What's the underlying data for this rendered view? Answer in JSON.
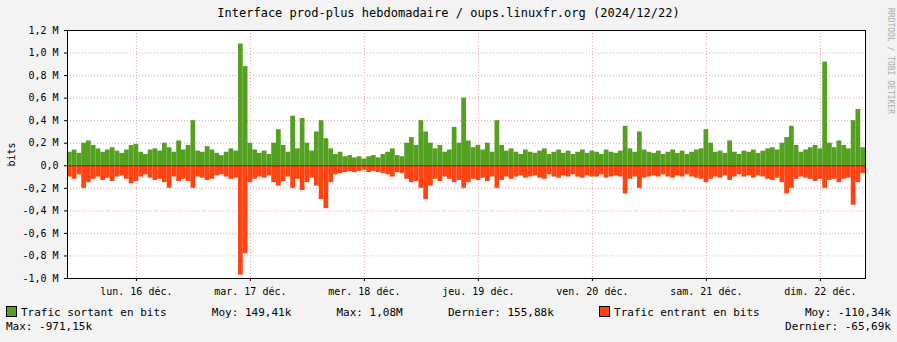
{
  "chart_data": {
    "type": "bar",
    "title": "Interface prod-plus hebdomadaire / oups.linuxfr.org (2024/12/22)",
    "y_label": "bits",
    "annotations": [
      "RRDTOOL / TOBI OETIKER"
    ],
    "categories": [
      null,
      null,
      null,
      null,
      null,
      null,
      null,
      null,
      null,
      null,
      null,
      null,
      null,
      null,
      "lun. 16 déc.",
      null,
      null,
      null,
      null,
      null,
      null,
      null,
      null,
      null,
      null,
      null,
      null,
      null,
      null,
      null,
      null,
      null,
      null,
      null,
      null,
      null,
      null,
      null,
      "mar. 17 déc.",
      null,
      null,
      null,
      null,
      null,
      null,
      null,
      null,
      null,
      null,
      null,
      null,
      null,
      null,
      null,
      null,
      null,
      null,
      null,
      null,
      null,
      null,
      null,
      "mer. 18 déc.",
      null,
      null,
      null,
      null,
      null,
      null,
      null,
      null,
      null,
      null,
      null,
      null,
      null,
      null,
      null,
      null,
      null,
      null,
      null,
      null,
      null,
      null,
      null,
      "jeu. 19 déc.",
      null,
      null,
      null,
      null,
      null,
      null,
      null,
      null,
      null,
      null,
      null,
      null,
      null,
      null,
      null,
      null,
      null,
      null,
      null,
      null,
      null,
      null,
      null,
      "ven. 20 déc.",
      null,
      null,
      null,
      null,
      null,
      null,
      null,
      null,
      null,
      null,
      null,
      null,
      null,
      null,
      null,
      null,
      null,
      null,
      null,
      null,
      null,
      null,
      null,
      "sam. 21 déc.",
      null,
      null,
      null,
      null,
      null,
      null,
      null,
      null,
      null,
      null,
      null,
      null,
      null,
      null,
      null,
      null,
      null,
      null,
      null,
      null,
      null,
      null,
      null,
      "dim. 22 déc.",
      null,
      null,
      null,
      null,
      null,
      null,
      null,
      null,
      null
    ],
    "series": [
      {
        "name": "Trafic sortant en bits",
        "color": "#54a020",
        "stats": [
          "Moy: 149,41k",
          "Max: 1,08M",
          "Dernier: 155,88k"
        ],
        "values": [
          0.12,
          0.14,
          0.11,
          0.2,
          0.22,
          0.18,
          0.15,
          0.12,
          0.14,
          0.16,
          0.13,
          0.11,
          0.14,
          0.18,
          0.19,
          0.12,
          0.1,
          0.14,
          0.15,
          0.13,
          0.2,
          0.16,
          0.12,
          0.22,
          0.14,
          0.18,
          0.4,
          0.13,
          0.12,
          0.17,
          0.14,
          0.11,
          0.09,
          0.12,
          0.15,
          0.13,
          1.08,
          0.88,
          0.2,
          0.14,
          0.11,
          0.13,
          0.1,
          0.2,
          0.32,
          0.18,
          0.12,
          0.44,
          0.15,
          0.42,
          0.2,
          0.13,
          0.3,
          0.4,
          0.24,
          0.15,
          0.1,
          0.12,
          0.08,
          0.09,
          0.07,
          0.08,
          0.06,
          0.08,
          0.09,
          0.07,
          0.1,
          0.12,
          0.15,
          0.09,
          0.08,
          0.2,
          0.25,
          0.18,
          0.4,
          0.3,
          0.2,
          0.15,
          0.18,
          0.12,
          0.14,
          0.34,
          0.2,
          0.6,
          0.22,
          0.16,
          0.18,
          0.14,
          0.2,
          0.12,
          0.4,
          0.18,
          0.13,
          0.15,
          0.12,
          0.1,
          0.14,
          0.12,
          0.11,
          0.13,
          0.15,
          0.1,
          0.12,
          0.14,
          0.11,
          0.13,
          0.1,
          0.12,
          0.14,
          0.11,
          0.13,
          0.12,
          0.1,
          0.14,
          0.12,
          0.11,
          0.13,
          0.35,
          0.15,
          0.12,
          0.3,
          0.14,
          0.12,
          0.11,
          0.13,
          0.1,
          0.12,
          0.14,
          0.11,
          0.13,
          0.1,
          0.12,
          0.14,
          0.15,
          0.32,
          0.2,
          0.12,
          0.13,
          0.11,
          0.22,
          0.12,
          0.1,
          0.13,
          0.12,
          0.14,
          0.11,
          0.13,
          0.15,
          0.16,
          0.14,
          0.2,
          0.25,
          0.35,
          0.18,
          0.12,
          0.14,
          0.16,
          0.18,
          0.15,
          0.92,
          0.2,
          0.16,
          0.22,
          0.18,
          0.15,
          0.4,
          0.5,
          0.16
        ]
      },
      {
        "name": "Trafic entrant en bits",
        "color": "#ff4411",
        "stats": [
          "Moy: -110,34k",
          "Max: -971,15k",
          "Dernier: -65,69k"
        ],
        "values": [
          -0.1,
          -0.12,
          -0.08,
          -0.2,
          -0.15,
          -0.12,
          -0.1,
          -0.13,
          -0.11,
          -0.14,
          -0.1,
          -0.09,
          -0.12,
          -0.16,
          -0.14,
          -0.1,
          -0.08,
          -0.11,
          -0.13,
          -0.12,
          -0.15,
          -0.2,
          -0.1,
          -0.14,
          -0.12,
          -0.14,
          -0.2,
          -0.1,
          -0.11,
          -0.13,
          -0.12,
          -0.09,
          -0.08,
          -0.1,
          -0.12,
          -0.11,
          -0.97,
          -0.78,
          -0.15,
          -0.12,
          -0.1,
          -0.11,
          -0.09,
          -0.15,
          -0.18,
          -0.14,
          -0.1,
          -0.2,
          -0.12,
          -0.22,
          -0.15,
          -0.11,
          -0.18,
          -0.3,
          -0.38,
          -0.15,
          -0.08,
          -0.07,
          -0.06,
          -0.05,
          -0.06,
          -0.05,
          -0.04,
          -0.06,
          -0.05,
          -0.06,
          -0.07,
          -0.08,
          -0.1,
          -0.06,
          -0.07,
          -0.12,
          -0.15,
          -0.14,
          -0.2,
          -0.3,
          -0.18,
          -0.12,
          -0.14,
          -0.1,
          -0.12,
          -0.15,
          -0.13,
          -0.2,
          -0.15,
          -0.12,
          -0.13,
          -0.11,
          -0.14,
          -0.1,
          -0.2,
          -0.13,
          -0.1,
          -0.12,
          -0.1,
          -0.09,
          -0.11,
          -0.1,
          -0.09,
          -0.11,
          -0.12,
          -0.08,
          -0.1,
          -0.11,
          -0.09,
          -0.1,
          -0.08,
          -0.1,
          -0.11,
          -0.09,
          -0.1,
          -0.1,
          -0.08,
          -0.11,
          -0.1,
          -0.09,
          -0.1,
          -0.25,
          -0.12,
          -0.1,
          -0.2,
          -0.11,
          -0.1,
          -0.09,
          -0.1,
          -0.08,
          -0.1,
          -0.11,
          -0.09,
          -0.1,
          -0.08,
          -0.1,
          -0.11,
          -0.12,
          -0.15,
          -0.12,
          -0.1,
          -0.11,
          -0.09,
          -0.13,
          -0.1,
          -0.08,
          -0.1,
          -0.09,
          -0.11,
          -0.09,
          -0.1,
          -0.12,
          -0.13,
          -0.11,
          -0.15,
          -0.25,
          -0.2,
          -0.12,
          -0.1,
          -0.11,
          -0.12,
          -0.14,
          -0.12,
          -0.2,
          -0.13,
          -0.12,
          -0.15,
          -0.12,
          -0.11,
          -0.35,
          -0.15,
          -0.07
        ]
      }
    ],
    "ylim": [
      -1.0,
      1.2
    ],
    "yticks": [
      {
        "value": -1.0,
        "label": "-1,0 M"
      },
      {
        "value": -0.8,
        "label": "-0,8 M"
      },
      {
        "value": -0.6,
        "label": "-0,6 M"
      },
      {
        "value": -0.4,
        "label": "-0,4 M"
      },
      {
        "value": -0.2,
        "label": "-0,2 M"
      },
      {
        "value": 0,
        "label": "0,0"
      },
      {
        "value": 0.2,
        "label": "0,2 M"
      },
      {
        "value": 0.4,
        "label": "0,4 M"
      },
      {
        "value": 0.6,
        "label": "0,6 M"
      },
      {
        "value": 0.8,
        "label": "0,8 M"
      },
      {
        "value": 1.0,
        "label": "1,0 M"
      },
      {
        "value": 1.2,
        "label": "1,2 M"
      }
    ],
    "grid": true,
    "legend": "bottom"
  }
}
